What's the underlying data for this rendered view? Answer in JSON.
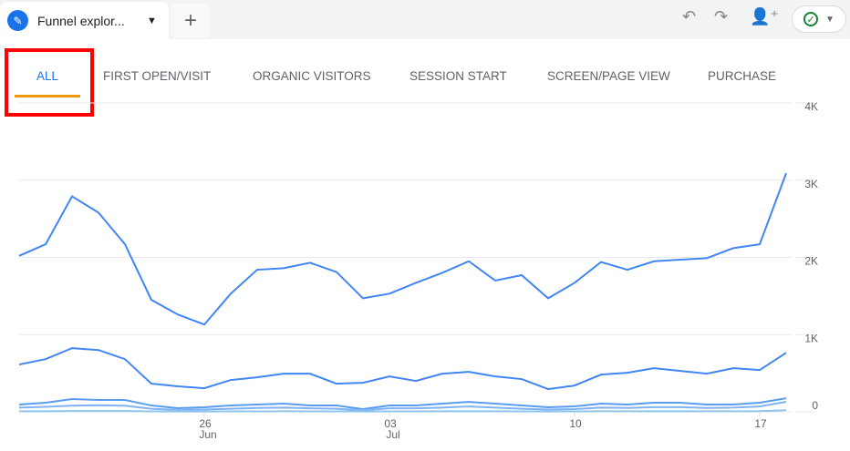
{
  "header": {
    "tab_title": "Funnel explor...",
    "icons": [
      "pencil-icon",
      "caret-down-icon",
      "plus-icon",
      "undo-icon",
      "redo-icon",
      "share-user-icon",
      "check-circle-icon"
    ]
  },
  "tabs": [
    {
      "label": "ALL",
      "active": true
    },
    {
      "label": "FIRST OPEN/VISIT"
    },
    {
      "label": "ORGANIC VISITORS"
    },
    {
      "label": "SESSION START"
    },
    {
      "label": "SCREEN/PAGE VIEW"
    },
    {
      "label": "PURCHASE"
    }
  ],
  "colors": {
    "accent": "#1a73e8",
    "tab_underline": "#f29900",
    "highlight_box": "#ff0000"
  },
  "chart_data": {
    "type": "line",
    "x": [
      "Jun 19",
      "Jun 20",
      "Jun 21",
      "Jun 22",
      "Jun 23",
      "Jun 24",
      "Jun 25",
      "Jun 26",
      "Jun 27",
      "Jun 28",
      "Jun 29",
      "Jun 30",
      "Jul 01",
      "Jul 02",
      "Jul 03",
      "Jul 04",
      "Jul 05",
      "Jul 06",
      "Jul 07",
      "Jul 08",
      "Jul 09",
      "Jul 10",
      "Jul 11",
      "Jul 12",
      "Jul 13",
      "Jul 14",
      "Jul 15",
      "Jul 16",
      "Jul 17",
      "Jul 18"
    ],
    "x_ticks": [
      {
        "day": "26",
        "month": "Jun",
        "index": 7
      },
      {
        "day": "03",
        "month": "Jul",
        "index": 14
      },
      {
        "day": "10",
        "month": "",
        "index": 21
      },
      {
        "day": "17",
        "month": "",
        "index": 28
      }
    ],
    "y_ticks": [
      "0",
      "1K",
      "2K",
      "3K",
      "4K"
    ],
    "ylim": [
      0,
      4000
    ],
    "grid": true,
    "series": [
      {
        "color": "#4285f4",
        "values": [
          2020,
          2170,
          2790,
          2580,
          2170,
          1450,
          1260,
          1130,
          1530,
          1840,
          1860,
          1930,
          1810,
          1470,
          1530,
          1670,
          1800,
          1950,
          1700,
          1770,
          1470,
          1670,
          1940,
          1840,
          1950,
          1970,
          1990,
          2120,
          2170,
          3090
        ]
      },
      {
        "color": "#4285f4",
        "values": [
          613,
          682,
          825,
          800,
          682,
          365,
          330,
          306,
          412,
          447,
          494,
          494,
          365,
          376,
          459,
          400,
          494,
          518,
          459,
          424,
          294,
          341,
          482,
          506,
          565,
          529,
          494,
          565,
          541,
          765
        ]
      },
      {
        "color": "#5a9cf0",
        "values": [
          94,
          118,
          165,
          153,
          153,
          82,
          47,
          59,
          82,
          94,
          106,
          82,
          82,
          35,
          82,
          82,
          106,
          129,
          106,
          82,
          59,
          71,
          106,
          94,
          118,
          118,
          94,
          94,
          118,
          176
        ]
      },
      {
        "color": "#7fb3f5",
        "values": [
          55,
          65,
          80,
          85,
          80,
          40,
          25,
          30,
          40,
          50,
          55,
          45,
          40,
          20,
          45,
          45,
          55,
          70,
          55,
          40,
          30,
          35,
          55,
          50,
          60,
          60,
          50,
          55,
          70,
          130
        ]
      },
      {
        "color": "#8fc4ec",
        "values": [
          8,
          8,
          10,
          10,
          10,
          6,
          5,
          5,
          6,
          6,
          7,
          6,
          6,
          5,
          6,
          6,
          7,
          8,
          7,
          6,
          5,
          6,
          7,
          7,
          8,
          8,
          7,
          8,
          9,
          20
        ]
      }
    ]
  }
}
